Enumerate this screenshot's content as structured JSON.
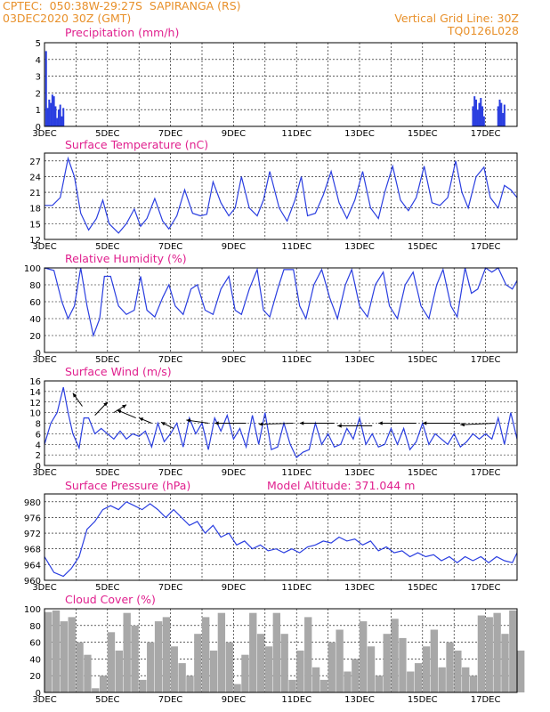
{
  "header": {
    "line1_left": "CPTEC:  050:38W-29:27S  SAPIRANGA (RS)",
    "line2_left": "03DEC2020 30Z (GMT)",
    "line1_right": "Vertical Grid Line: 30Z",
    "line2_right": "TQ0126L028"
  },
  "colors": {
    "series": "#2a3ee0",
    "title": "#e0208e",
    "header": "#e8902a",
    "cloud": "#a8a8a8"
  },
  "chart_data": [
    {
      "type": "bar",
      "title": "Precipitation (mm/h)",
      "x_tick_labels": [
        "3DEC",
        "5DEC",
        "7DEC",
        "9DEC",
        "11DEC",
        "13DEC",
        "15DEC",
        "17DEC"
      ],
      "ylim": [
        0,
        5
      ],
      "y_ticks": [
        0,
        1,
        2,
        3,
        4,
        5
      ],
      "x": [
        0.05,
        0.1,
        0.15,
        0.2,
        0.25,
        0.3,
        0.35,
        0.4,
        0.45,
        0.5,
        0.55,
        0.6,
        13.6,
        13.65,
        13.7,
        13.75,
        13.8,
        13.85,
        13.9,
        13.95,
        14.4,
        14.45,
        14.5,
        14.55,
        14.6
      ],
      "values": [
        4.5,
        1.1,
        1.6,
        1.4,
        1.9,
        1.8,
        1.2,
        0.5,
        1.0,
        1.3,
        0.6,
        1.1,
        1.2,
        1.8,
        1.6,
        1.0,
        1.4,
        1.7,
        1.2,
        0.6,
        1.2,
        1.6,
        1.4,
        0.8,
        1.3
      ]
    },
    {
      "type": "line",
      "title": "Surface Temperature (nC)",
      "x_tick_labels": [
        "3DEC",
        "5DEC",
        "7DEC",
        "9DEC",
        "11DEC",
        "13DEC",
        "15DEC",
        "17DEC"
      ],
      "ylim": [
        12,
        28.5
      ],
      "y_ticks": [
        12,
        15,
        18,
        21,
        24,
        27
      ],
      "x": [
        0,
        0.25,
        0.5,
        0.75,
        0.95,
        1.15,
        1.4,
        1.65,
        1.85,
        2.05,
        2.35,
        2.6,
        2.85,
        3.05,
        3.25,
        3.5,
        3.75,
        3.95,
        4.2,
        4.45,
        4.7,
        4.95,
        5.15,
        5.35,
        5.6,
        5.85,
        6.05,
        6.25,
        6.5,
        6.75,
        6.95,
        7.15,
        7.45,
        7.7,
        7.95,
        8.15,
        8.35,
        8.6,
        8.85,
        9.1,
        9.35,
        9.6,
        9.85,
        10.1,
        10.35,
        10.6,
        10.8,
        11.05,
        11.3,
        11.55,
        11.8,
        12.05,
        12.3,
        12.55,
        12.8,
        13.05,
        13.25,
        13.45,
        13.7,
        13.95,
        14.15,
        14.4,
        14.6,
        14.8,
        15
      ],
      "values": [
        18.5,
        18.5,
        20,
        27.5,
        24,
        17,
        13.8,
        16,
        19.5,
        15,
        13.2,
        15,
        17.8,
        14.5,
        16,
        19.8,
        15.5,
        14,
        16.5,
        21.5,
        17,
        16.5,
        16.8,
        23,
        19,
        16.5,
        18,
        24,
        18,
        16.5,
        19.5,
        25,
        18,
        15.5,
        19.5,
        24,
        16.5,
        17,
        20.5,
        25,
        19,
        16,
        19.5,
        25,
        18,
        16,
        21,
        26,
        19.5,
        17.5,
        20,
        26,
        19,
        18.5,
        20,
        27,
        21,
        18,
        24,
        25.8,
        20,
        18,
        22.3,
        21.5,
        20
      ]
    },
    {
      "type": "line",
      "title": "Relative Humidity (%)",
      "x_tick_labels": [
        "3DEC",
        "5DEC",
        "7DEC",
        "9DEC",
        "11DEC",
        "13DEC",
        "15DEC",
        "17DEC"
      ],
      "ylim": [
        0,
        100
      ],
      "y_ticks": [
        0,
        20,
        40,
        60,
        80,
        100
      ],
      "x": [
        0,
        0.3,
        0.55,
        0.75,
        0.95,
        1.15,
        1.35,
        1.55,
        1.75,
        1.9,
        2.1,
        2.35,
        2.6,
        2.85,
        3.05,
        3.25,
        3.5,
        3.75,
        3.95,
        4.15,
        4.4,
        4.65,
        4.85,
        5.1,
        5.35,
        5.6,
        5.85,
        6.05,
        6.25,
        6.5,
        6.75,
        6.95,
        7.15,
        7.4,
        7.6,
        7.9,
        8.1,
        8.3,
        8.55,
        8.8,
        9.05,
        9.3,
        9.55,
        9.75,
        10,
        10.25,
        10.5,
        10.75,
        10.95,
        11.2,
        11.45,
        11.7,
        11.95,
        12.2,
        12.45,
        12.65,
        12.9,
        13.1,
        13.35,
        13.55,
        13.75,
        14,
        14.2,
        14.4,
        14.65,
        14.85,
        15
      ],
      "values": [
        100,
        97,
        60,
        40,
        55,
        100,
        55,
        20,
        40,
        90,
        90,
        55,
        45,
        50,
        90,
        50,
        42,
        65,
        80,
        55,
        45,
        75,
        80,
        50,
        45,
        75,
        90,
        50,
        45,
        75,
        98,
        50,
        42,
        75,
        98,
        98,
        55,
        40,
        80,
        98,
        65,
        40,
        80,
        98,
        55,
        42,
        80,
        95,
        55,
        40,
        80,
        95,
        55,
        40,
        80,
        98,
        55,
        42,
        100,
        70,
        75,
        100,
        95,
        100,
        80,
        75,
        85
      ]
    },
    {
      "type": "line",
      "title": "Surface Wind (m/s)",
      "x_tick_labels": [
        "3DEC",
        "5DEC",
        "7DEC",
        "9DEC",
        "11DEC",
        "13DEC",
        "15DEC",
        "17DEC"
      ],
      "ylim": [
        0,
        16
      ],
      "y_ticks": [
        0,
        2,
        4,
        6,
        8,
        10,
        12,
        14,
        16
      ],
      "x": [
        0,
        0.2,
        0.4,
        0.6,
        0.75,
        0.9,
        1.1,
        1.25,
        1.4,
        1.6,
        1.8,
        2,
        2.2,
        2.4,
        2.6,
        2.8,
        3,
        3.2,
        3.4,
        3.6,
        3.8,
        4,
        4.2,
        4.4,
        4.6,
        4.8,
        5,
        5.2,
        5.4,
        5.6,
        5.8,
        6,
        6.2,
        6.4,
        6.6,
        6.8,
        7,
        7.2,
        7.4,
        7.6,
        7.8,
        8,
        8.2,
        8.4,
        8.6,
        8.8,
        9,
        9.2,
        9.4,
        9.6,
        9.8,
        10,
        10.2,
        10.4,
        10.6,
        10.8,
        11,
        11.2,
        11.4,
        11.6,
        11.8,
        12,
        12.2,
        12.4,
        12.6,
        12.8,
        13,
        13.2,
        13.4,
        13.6,
        13.8,
        14,
        14.2,
        14.4,
        14.6,
        14.8,
        15
      ],
      "values": [
        4,
        8,
        10,
        14.8,
        10,
        6,
        3.3,
        9,
        9,
        6,
        7,
        6,
        5,
        6.5,
        5,
        6,
        5.5,
        6.5,
        3.5,
        8,
        4.5,
        6,
        8,
        3.5,
        9,
        6,
        8,
        3,
        9,
        6.5,
        9.5,
        5,
        7,
        3.5,
        9.5,
        4,
        10,
        3,
        3.5,
        8,
        4,
        1.5,
        2.5,
        3,
        8,
        4,
        6,
        3.5,
        4,
        7,
        5,
        9,
        4,
        6,
        3.5,
        4,
        7,
        4,
        7,
        3,
        4.5,
        8,
        4,
        6,
        5,
        4,
        6,
        3.5,
        4.5,
        6,
        5,
        6,
        5,
        9,
        4,
        10,
        5
      ]
    },
    {
      "type": "line",
      "title": "Surface Pressure (hPa)",
      "annotation": "Model Altitude: 371.044  m",
      "x_tick_labels": [
        "3DEC",
        "5DEC",
        "7DEC",
        "9DEC",
        "11DEC",
        "13DEC",
        "15DEC",
        "17DEC"
      ],
      "ylim": [
        960,
        982
      ],
      "y_ticks": [
        960,
        964,
        968,
        972,
        976,
        980
      ],
      "x": [
        0,
        0.3,
        0.6,
        0.85,
        1.1,
        1.35,
        1.6,
        1.85,
        2.1,
        2.35,
        2.6,
        2.85,
        3.1,
        3.35,
        3.6,
        3.85,
        4.1,
        4.35,
        4.6,
        4.85,
        5.1,
        5.35,
        5.6,
        5.85,
        6.1,
        6.35,
        6.6,
        6.85,
        7.1,
        7.35,
        7.6,
        7.85,
        8.1,
        8.35,
        8.6,
        8.85,
        9.1,
        9.35,
        9.6,
        9.85,
        10.1,
        10.35,
        10.6,
        10.85,
        11.1,
        11.35,
        11.6,
        11.85,
        12.1,
        12.35,
        12.6,
        12.85,
        13.1,
        13.35,
        13.6,
        13.85,
        14.1,
        14.35,
        14.6,
        14.85,
        15
      ],
      "values": [
        966,
        962,
        961,
        963,
        966,
        973,
        975,
        978,
        979,
        978,
        980,
        979,
        978,
        979.5,
        978,
        976,
        978,
        976,
        974,
        975,
        972,
        974,
        971,
        972,
        969,
        970,
        968,
        969,
        967.5,
        968,
        967,
        968,
        967,
        968.5,
        969,
        970,
        969.5,
        971,
        970,
        970.5,
        969,
        970,
        967.5,
        968.5,
        967,
        967.5,
        966,
        967,
        966,
        966.5,
        965,
        966,
        964.5,
        966,
        965,
        966,
        964.5,
        966,
        965,
        964.5,
        967
      ]
    },
    {
      "type": "bar",
      "title": "Cloud Cover (%)",
      "x_tick_labels": [
        "3DEC",
        "5DEC",
        "7DEC",
        "9DEC",
        "11DEC",
        "13DEC",
        "15DEC",
        "17DEC"
      ],
      "ylim": [
        0,
        100
      ],
      "y_ticks": [
        0,
        20,
        40,
        60,
        80,
        100
      ],
      "x": [
        0,
        0.25,
        0.5,
        0.75,
        1,
        1.25,
        1.5,
        1.75,
        2,
        2.25,
        2.5,
        2.75,
        3,
        3.25,
        3.5,
        3.75,
        4,
        4.25,
        4.5,
        4.75,
        5,
        5.25,
        5.5,
        5.75,
        6,
        6.25,
        6.5,
        6.75,
        7,
        7.25,
        7.5,
        7.75,
        8,
        8.25,
        8.5,
        8.75,
        9,
        9.25,
        9.5,
        9.75,
        10,
        10.25,
        10.5,
        10.75,
        11,
        11.25,
        11.5,
        11.75,
        12,
        12.25,
        12.5,
        12.75,
        13,
        13.25,
        13.5,
        13.75,
        14,
        14.25,
        14.5,
        14.75,
        15
      ],
      "values": [
        96,
        98,
        85,
        90,
        60,
        45,
        5,
        20,
        72,
        50,
        95,
        80,
        15,
        60,
        85,
        90,
        55,
        35,
        20,
        70,
        90,
        50,
        95,
        60,
        10,
        45,
        95,
        70,
        55,
        95,
        70,
        15,
        50,
        90,
        30,
        15,
        60,
        75,
        25,
        40,
        85,
        55,
        20,
        70,
        88,
        65,
        25,
        35,
        55,
        75,
        30,
        60,
        50,
        30,
        20,
        92,
        90,
        95,
        70,
        98,
        50
      ]
    }
  ]
}
